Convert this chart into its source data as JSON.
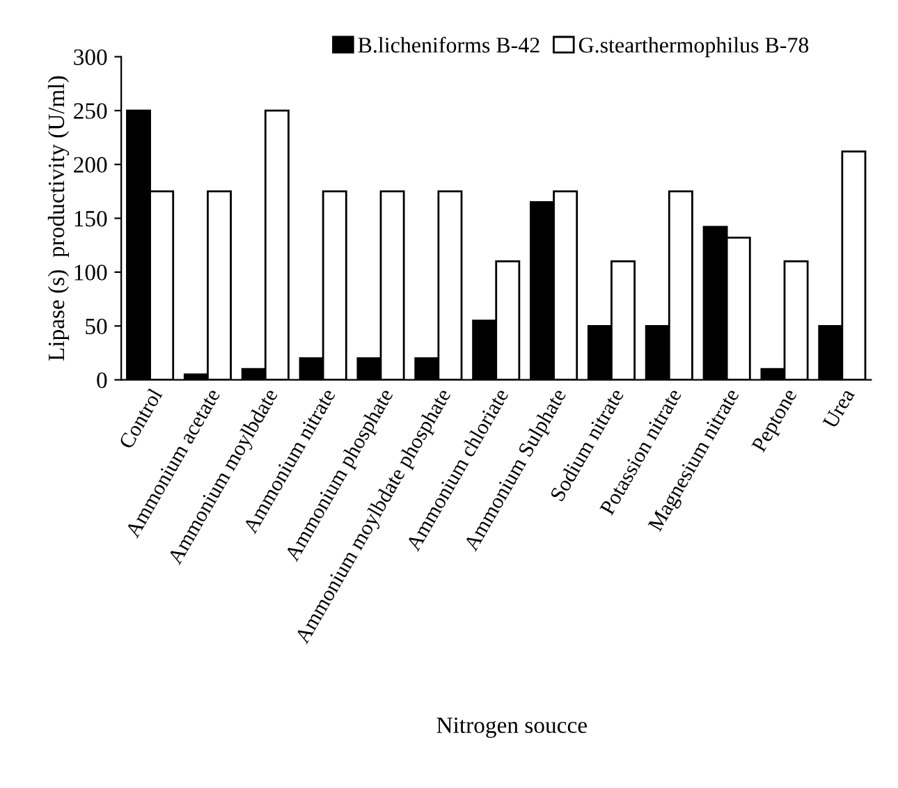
{
  "chart_data": {
    "type": "bar",
    "xlabel": "Nitrogen soucce",
    "ylabel": "Lipase (s)  productivity (U/ml)",
    "categories": [
      "Control",
      "Ammonium acetate",
      "Ammonium moylbdate",
      "Ammonium nitrate",
      "Ammonium phosphate",
      "Ammonium moylbdate phosphate",
      "Ammonium chloriate",
      "Ammonium Sulphate",
      "Sodium nitrate",
      "Potassion nitrate",
      "Magnesium nitrate",
      "Peptone",
      "Urea"
    ],
    "series": [
      {
        "name": "B.licheniforms B-42",
        "color": "#000000",
        "values": [
          250,
          5,
          10,
          20,
          20,
          20,
          55,
          165,
          50,
          50,
          142,
          10,
          50
        ]
      },
      {
        "name": "G.stearthermophilus B-78",
        "color": "#ffffff",
        "values": [
          175,
          175,
          250,
          175,
          175,
          175,
          110,
          175,
          110,
          175,
          132,
          110,
          212
        ]
      }
    ],
    "ylim": [
      0,
      300
    ],
    "yticks": [
      0,
      50,
      100,
      150,
      200,
      250,
      300
    ],
    "grid": false,
    "legend": "top"
  }
}
